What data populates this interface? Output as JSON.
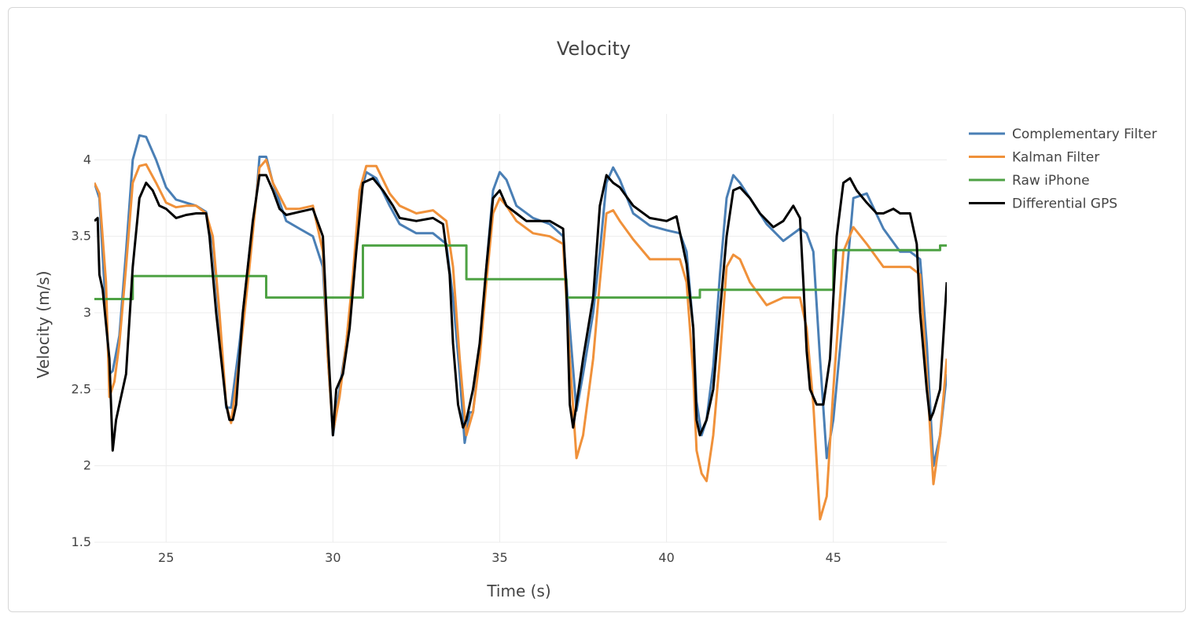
{
  "chart_data": {
    "type": "line",
    "title": "Velocity",
    "xlabel": "Time (s)",
    "ylabel": "Velocity (m/s)",
    "xlim": [
      22.85,
      48.4
    ],
    "ylim": [
      1.5,
      4.3
    ],
    "x_ticks": [
      25,
      30,
      35,
      40,
      45
    ],
    "y_ticks": [
      1.5,
      2,
      2.5,
      3,
      3.5,
      4
    ],
    "x_tick_labels": [
      "25",
      "30",
      "35",
      "40",
      "45"
    ],
    "y_tick_labels": [
      "1.5",
      "2",
      "2.5",
      "3",
      "3.5",
      "4"
    ],
    "grid": true,
    "legend_position": "right",
    "series": [
      {
        "name": "Complementary Filter",
        "color": "#4a7fb5",
        "x": [
          22.85,
          23.0,
          23.2,
          23.3,
          23.4,
          23.6,
          23.8,
          24.0,
          24.2,
          24.4,
          24.7,
          25.0,
          25.3,
          25.6,
          25.9,
          26.2,
          26.4,
          26.6,
          26.8,
          26.95,
          27.2,
          27.5,
          27.7,
          27.8,
          27.9,
          28.0,
          28.2,
          28.6,
          29.0,
          29.4,
          29.7,
          29.85,
          30.0,
          30.2,
          30.4,
          30.6,
          30.8,
          31.0,
          31.3,
          31.7,
          32.0,
          32.5,
          33.0,
          33.4,
          33.6,
          33.8,
          33.95,
          34.1,
          34.2,
          34.4,
          34.6,
          34.8,
          35.0,
          35.2,
          35.5,
          36.0,
          36.5,
          36.9,
          37.1,
          37.3,
          37.5,
          37.8,
          38.0,
          38.2,
          38.4,
          38.6,
          39.0,
          39.5,
          40.0,
          40.4,
          40.6,
          40.8,
          40.9,
          41.05,
          41.2,
          41.4,
          41.6,
          41.8,
          42.0,
          42.2,
          42.5,
          43.0,
          43.5,
          44.0,
          44.2,
          44.4,
          44.6,
          44.8,
          45.0,
          45.3,
          45.6,
          46.0,
          46.5,
          47.0,
          47.3,
          47.6,
          47.8,
          48.0,
          48.2,
          48.4
        ],
        "y": [
          3.85,
          3.75,
          3.0,
          2.6,
          2.62,
          2.85,
          3.4,
          4.0,
          4.16,
          4.15,
          4.0,
          3.82,
          3.74,
          3.72,
          3.7,
          3.66,
          3.45,
          2.95,
          2.38,
          2.38,
          2.8,
          3.4,
          3.75,
          4.02,
          4.02,
          4.02,
          3.85,
          3.6,
          3.55,
          3.5,
          3.3,
          2.7,
          2.2,
          2.5,
          2.8,
          3.2,
          3.75,
          3.92,
          3.88,
          3.7,
          3.58,
          3.52,
          3.52,
          3.45,
          3.1,
          2.6,
          2.15,
          2.35,
          2.35,
          2.75,
          3.3,
          3.8,
          3.92,
          3.87,
          3.7,
          3.62,
          3.58,
          3.5,
          2.9,
          2.36,
          2.6,
          3.0,
          3.4,
          3.85,
          3.95,
          3.87,
          3.65,
          3.57,
          3.54,
          3.52,
          3.4,
          2.9,
          2.42,
          2.2,
          2.3,
          2.65,
          3.25,
          3.75,
          3.9,
          3.85,
          3.75,
          3.58,
          3.47,
          3.55,
          3.52,
          3.4,
          2.7,
          2.05,
          2.3,
          3.0,
          3.75,
          3.78,
          3.55,
          3.4,
          3.4,
          3.35,
          2.8,
          2.0,
          2.2,
          2.6
        ]
      },
      {
        "name": "Kalman Filter",
        "color": "#f0913a",
        "x": [
          22.85,
          23.0,
          23.2,
          23.3,
          23.45,
          23.6,
          23.8,
          24.0,
          24.2,
          24.4,
          24.7,
          25.0,
          25.3,
          25.6,
          25.9,
          26.2,
          26.4,
          26.6,
          26.8,
          26.95,
          27.2,
          27.5,
          27.7,
          27.8,
          28.0,
          28.2,
          28.6,
          29.0,
          29.4,
          29.7,
          29.85,
          30.0,
          30.2,
          30.4,
          30.6,
          30.8,
          31.0,
          31.3,
          31.7,
          32.0,
          32.5,
          33.0,
          33.4,
          33.6,
          33.8,
          34.0,
          34.2,
          34.4,
          34.6,
          34.8,
          35.0,
          35.2,
          35.5,
          36.0,
          36.5,
          36.9,
          37.1,
          37.3,
          37.5,
          37.8,
          38.0,
          38.2,
          38.4,
          38.6,
          39.0,
          39.5,
          40.0,
          40.4,
          40.6,
          40.8,
          40.9,
          41.05,
          41.2,
          41.4,
          41.6,
          41.8,
          42.0,
          42.2,
          42.5,
          43.0,
          43.5,
          44.0,
          44.2,
          44.4,
          44.6,
          44.8,
          45.0,
          45.3,
          45.6,
          46.0,
          46.5,
          47.0,
          47.3,
          47.6,
          47.8,
          48.0,
          48.2,
          48.4
        ],
        "y": [
          3.85,
          3.78,
          3.2,
          2.45,
          2.55,
          2.8,
          3.3,
          3.85,
          3.96,
          3.97,
          3.85,
          3.72,
          3.69,
          3.7,
          3.7,
          3.65,
          3.5,
          3.0,
          2.4,
          2.28,
          2.7,
          3.3,
          3.75,
          3.95,
          4.0,
          3.85,
          3.68,
          3.68,
          3.7,
          3.4,
          2.7,
          2.22,
          2.45,
          2.8,
          3.25,
          3.8,
          3.96,
          3.96,
          3.78,
          3.7,
          3.65,
          3.67,
          3.6,
          3.3,
          2.7,
          2.2,
          2.35,
          2.7,
          3.2,
          3.65,
          3.75,
          3.7,
          3.6,
          3.52,
          3.5,
          3.45,
          2.7,
          2.05,
          2.2,
          2.7,
          3.2,
          3.65,
          3.67,
          3.6,
          3.48,
          3.35,
          3.35,
          3.35,
          3.2,
          2.6,
          2.1,
          1.95,
          1.9,
          2.2,
          2.7,
          3.3,
          3.38,
          3.35,
          3.2,
          3.05,
          3.1,
          3.1,
          2.9,
          2.4,
          1.65,
          1.8,
          2.5,
          3.4,
          3.56,
          3.45,
          3.3,
          3.3,
          3.3,
          3.25,
          2.6,
          1.88,
          2.2,
          2.7
        ]
      },
      {
        "name": "Raw iPhone",
        "color": "#4ea244",
        "step": true,
        "x": [
          22.85,
          24.0,
          28.0,
          30.9,
          34.0,
          37.0,
          41.0,
          45.0,
          48.2,
          48.4
        ],
        "y": [
          3.09,
          3.24,
          3.1,
          3.44,
          3.22,
          3.1,
          3.15,
          3.41,
          3.44,
          3.44
        ]
      },
      {
        "name": "Differential GPS",
        "color": "#000000",
        "x": [
          22.85,
          22.95,
          23.0,
          23.1,
          23.3,
          23.4,
          23.5,
          23.6,
          23.8,
          24.0,
          24.2,
          24.4,
          24.6,
          24.8,
          25.0,
          25.3,
          25.6,
          25.9,
          26.2,
          26.3,
          26.5,
          26.8,
          26.9,
          27.0,
          27.1,
          27.3,
          27.6,
          27.8,
          28.0,
          28.2,
          28.4,
          28.6,
          29.0,
          29.4,
          29.7,
          29.85,
          30.0,
          30.1,
          30.3,
          30.5,
          30.7,
          30.9,
          31.2,
          31.5,
          31.8,
          32.0,
          32.5,
          33.0,
          33.3,
          33.5,
          33.6,
          33.75,
          33.9,
          34.0,
          34.2,
          34.4,
          34.6,
          34.8,
          35.0,
          35.2,
          35.5,
          35.8,
          36.0,
          36.5,
          36.9,
          37.0,
          37.1,
          37.2,
          37.3,
          37.5,
          37.8,
          38.0,
          38.2,
          38.4,
          38.6,
          39.0,
          39.5,
          40.0,
          40.3,
          40.6,
          40.8,
          40.9,
          41.0,
          41.2,
          41.4,
          41.6,
          41.8,
          42.0,
          42.2,
          42.5,
          42.8,
          43.2,
          43.5,
          43.8,
          44.0,
          44.1,
          44.2,
          44.3,
          44.5,
          44.7,
          44.9,
          45.1,
          45.3,
          45.5,
          45.7,
          46.0,
          46.3,
          46.5,
          46.8,
          47.0,
          47.3,
          47.5,
          47.6,
          47.8,
          47.9,
          48.0,
          48.2,
          48.4
        ],
        "y": [
          3.6,
          3.62,
          3.25,
          3.15,
          2.7,
          2.1,
          2.3,
          2.4,
          2.6,
          3.3,
          3.75,
          3.85,
          3.8,
          3.7,
          3.68,
          3.62,
          3.64,
          3.65,
          3.65,
          3.5,
          3.0,
          2.4,
          2.3,
          2.3,
          2.4,
          3.0,
          3.6,
          3.9,
          3.9,
          3.8,
          3.68,
          3.64,
          3.66,
          3.68,
          3.5,
          2.8,
          2.2,
          2.5,
          2.6,
          2.9,
          3.4,
          3.85,
          3.88,
          3.8,
          3.7,
          3.62,
          3.6,
          3.62,
          3.58,
          3.25,
          2.8,
          2.4,
          2.25,
          2.3,
          2.5,
          2.8,
          3.3,
          3.75,
          3.8,
          3.7,
          3.65,
          3.6,
          3.6,
          3.6,
          3.55,
          3.15,
          2.4,
          2.25,
          2.4,
          2.7,
          3.1,
          3.7,
          3.9,
          3.85,
          3.82,
          3.7,
          3.62,
          3.6,
          3.63,
          3.32,
          2.9,
          2.3,
          2.2,
          2.3,
          2.5,
          3.0,
          3.5,
          3.8,
          3.82,
          3.75,
          3.65,
          3.56,
          3.6,
          3.7,
          3.62,
          3.2,
          2.75,
          2.5,
          2.4,
          2.4,
          2.7,
          3.5,
          3.85,
          3.88,
          3.8,
          3.72,
          3.65,
          3.65,
          3.68,
          3.65,
          3.65,
          3.45,
          3.0,
          2.5,
          2.3,
          2.35,
          2.5,
          3.2
        ]
      }
    ]
  }
}
